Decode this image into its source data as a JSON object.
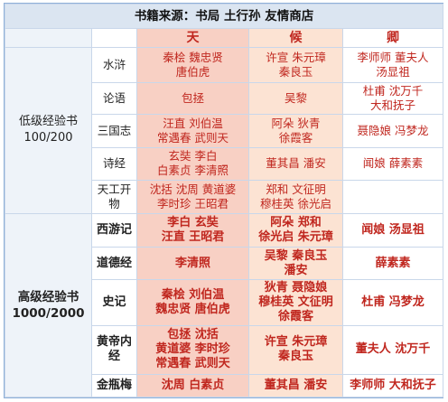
{
  "title": "书籍来源：书局 土行孙 友情商店",
  "columns": [
    "天",
    "候",
    "卿"
  ],
  "groups": [
    {
      "level": "低级经验书",
      "exp": "100/200",
      "bold": false,
      "rows": [
        {
          "book": "水浒",
          "tian": "秦桧 魏忠贤\n唐伯虎",
          "hou": "许宣 朱元璋\n秦良玉",
          "qing": "李师师 董夫人\n汤显祖"
        },
        {
          "book": "论语",
          "tian": "包拯",
          "hou": "吴黎",
          "qing": "杜甫 沈万千\n大和抚子"
        },
        {
          "book": "三国志",
          "tian": "汪直 刘伯温\n常遇春 武则天",
          "hou": "阿朵 狄青\n徐霞客",
          "qing": "聂隐娘 冯梦龙"
        },
        {
          "book": "诗经",
          "tian": "玄奘 李白\n白素贞 李清照",
          "hou": "董其昌 潘安",
          "qing": "闻娘 薛素素"
        },
        {
          "book": "天工开物",
          "tian": "沈括 沈周 黄道婆\n李时珍 王昭君",
          "hou": "郑和 文征明\n穆桂英 徐光启",
          "qing": ""
        }
      ]
    },
    {
      "level": "高级经验书",
      "exp": "1000/2000",
      "bold": true,
      "rows": [
        {
          "book": "西游记",
          "tian": "李白 玄奘\n汪直 王昭君",
          "hou": "阿朵 郑和\n徐光启 朱元璋",
          "qing": "闻娘 汤显祖"
        },
        {
          "book": "道德经",
          "tian": "李清照",
          "hou": "吴黎 秦良玉\n潘安",
          "qing": "薛素素"
        },
        {
          "book": "史记",
          "tian": "秦桧 刘伯温\n魏忠贤 唐伯虎",
          "hou": "狄青 聂隐娘\n穆桂英 文征明\n徐霞客",
          "qing": "杜甫 冯梦龙"
        },
        {
          "book": "黄帝内经",
          "tian": "包拯 沈括\n黄道婆 李时珍\n常遇春 武则天",
          "hou": "许宣 朱元璋\n秦良玉",
          "qing": "董夫人 沈万千"
        },
        {
          "book": "金瓶梅",
          "tian": "沈周 白素贞",
          "hou": "董其昌 潘安",
          "qing": "李师师 大和抚子"
        }
      ]
    }
  ]
}
